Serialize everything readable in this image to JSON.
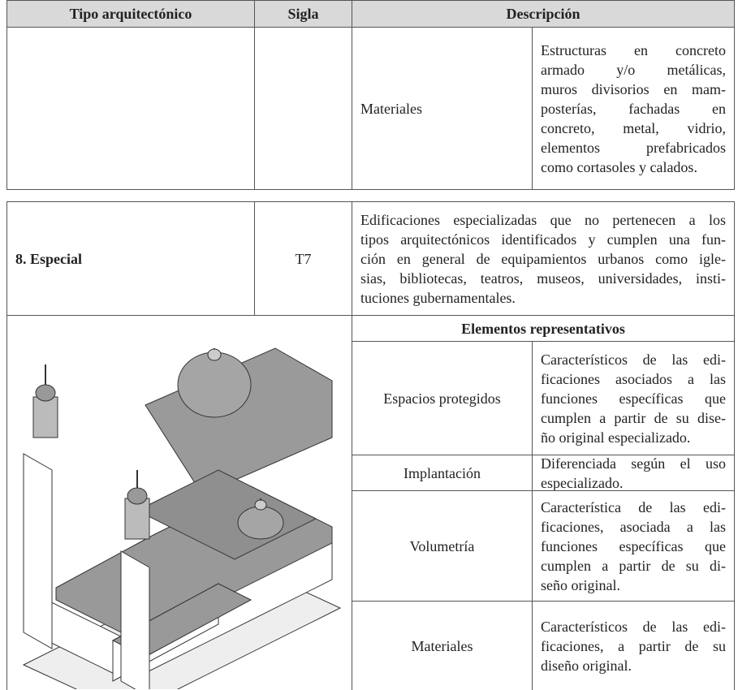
{
  "header": {
    "columns": [
      "Tipo arquitectónico",
      "Sigla",
      "Descripción"
    ]
  },
  "continuation": {
    "label": "Materiales",
    "description_lines": [
      "Estructuras en concreto",
      "armado y/o metálicas,",
      "muros divisorios en mam-",
      "posterías, fachadas en",
      "concreto, metal, vidrio,",
      "elementos prefabricados",
      "como cortasoles y calados."
    ]
  },
  "type": {
    "name": "8. Especial",
    "code": "T7",
    "description_lines": [
      "Edificaciones especializadas que no pertenecen a los",
      "tipos arquitectónicos identificados y cumplen una fun-",
      "ción en general de equipamientos urbanos como igle-",
      "sias, bibliotecas, teatros, museos, universidades, insti-",
      "tuciones gubernamentales."
    ]
  },
  "elements": {
    "title": "Elementos representativos",
    "rows": [
      {
        "label": "Espacios protegidos",
        "description_lines": [
          "Característicos de las edi-",
          "ficaciones asociados a las",
          "funciones específicas que",
          "cumplen a partir de su dise-",
          "ño original especializado."
        ]
      },
      {
        "label": "Implantación",
        "description_lines": [
          "Diferenciada según el uso",
          "especializado."
        ]
      },
      {
        "label": "Volumetría",
        "description_lines": [
          "Característica de las edi-",
          "ficaciones, asociada a las",
          "funciones específicas que",
          "cumplen a partir de su di-",
          "seño original."
        ]
      },
      {
        "label": "Materiales",
        "description_lines": [
          "Característicos de las edi-",
          "ficaciones, a partir de su",
          "diseño original."
        ]
      }
    ]
  }
}
